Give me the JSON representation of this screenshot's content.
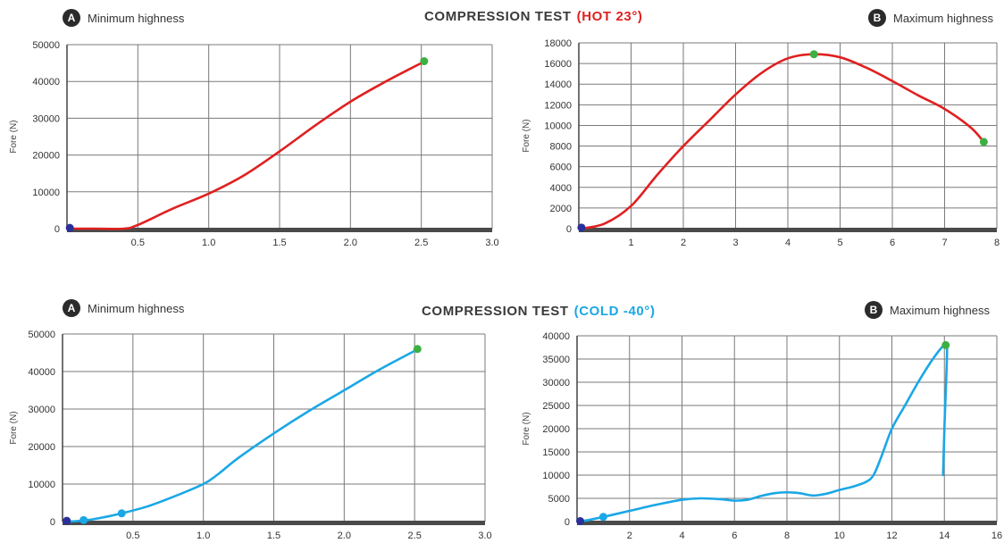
{
  "sections": [
    {
      "title_main": "COMPRESSION TEST",
      "title_temp": "(HOT 23°)",
      "accent": "#e02020",
      "left_badge": "A",
      "left_label": "Minimum highness",
      "right_badge": "B",
      "right_label": "Maximum highness"
    },
    {
      "title_main": "COMPRESSION TEST",
      "title_temp": "(COLD -40°)",
      "accent": "#1aa7e6",
      "left_badge": "A",
      "left_label": "Minimum highness",
      "right_badge": "B",
      "right_label": "Maximum highness"
    }
  ],
  "chart_data": [
    {
      "type": "line",
      "ylabel": "Fore (N)",
      "xlim": [
        0,
        3
      ],
      "ylim": [
        0,
        50000
      ],
      "xticks": [
        0.5,
        1.0,
        1.5,
        2.0,
        2.5,
        3.0
      ],
      "xtick_labels": [
        "0.5",
        "1.0",
        "1.5",
        "2.0",
        "2.5",
        "3.0"
      ],
      "yticks": [
        0,
        10000,
        20000,
        30000,
        40000,
        50000
      ],
      "ytick_labels": [
        "0",
        "10000",
        "20000",
        "30000",
        "40000",
        "50000"
      ],
      "grid": true,
      "line_color": "#e02020",
      "series": [
        {
          "x": [
            0.02,
            0.2,
            0.4,
            0.5,
            0.75,
            1.0,
            1.25,
            1.5,
            1.75,
            2.0,
            2.25,
            2.5
          ],
          "y": [
            0,
            0,
            0,
            1000,
            5500,
            9500,
            14500,
            21000,
            28000,
            34500,
            40000,
            45000
          ]
        }
      ],
      "markers": [
        {
          "x": 0.02,
          "y": 200,
          "color": "#2a2f9a"
        },
        {
          "x": 2.52,
          "y": 45500,
          "color": "#3cb043"
        }
      ]
    },
    {
      "type": "line",
      "ylabel": "Fore (N)",
      "xlim": [
        0,
        8
      ],
      "ylim": [
        0,
        18000
      ],
      "xticks": [
        1,
        2,
        3,
        4,
        5,
        6,
        7,
        8
      ],
      "xtick_labels": [
        "1",
        "2",
        "3",
        "4",
        "5",
        "6",
        "7",
        "8"
      ],
      "yticks": [
        0,
        2000,
        4000,
        6000,
        8000,
        10000,
        12000,
        14000,
        16000,
        18000
      ],
      "ytick_labels": [
        "0",
        "2000",
        "4000",
        "6000",
        "8000",
        "10000",
        "12000",
        "14000",
        "16000",
        "18000"
      ],
      "grid": true,
      "line_color": "#e02020",
      "series": [
        {
          "x": [
            0.05,
            0.5,
            1.0,
            1.5,
            2.0,
            2.5,
            3.0,
            3.5,
            4.0,
            4.5,
            5.0,
            5.5,
            6.0,
            6.5,
            7.0,
            7.5,
            7.75
          ],
          "y": [
            0,
            500,
            2200,
            5200,
            8000,
            10500,
            13000,
            15100,
            16500,
            16900,
            16600,
            15600,
            14300,
            12900,
            11600,
            9800,
            8400
          ]
        }
      ],
      "markers": [
        {
          "x": 0.05,
          "y": 100,
          "color": "#2a2f9a"
        },
        {
          "x": 4.5,
          "y": 16900,
          "color": "#3cb043"
        },
        {
          "x": 7.75,
          "y": 8400,
          "color": "#3cb043"
        }
      ]
    },
    {
      "type": "line",
      "ylabel": "Fore (N)",
      "xlim": [
        0,
        3
      ],
      "ylim": [
        0,
        50000
      ],
      "xticks": [
        0.5,
        1.0,
        1.5,
        2.0,
        2.5,
        3.0
      ],
      "xtick_labels": [
        "0.5",
        "1.0",
        "1.5",
        "2.0",
        "2.5",
        "3.0"
      ],
      "yticks": [
        0,
        10000,
        20000,
        30000,
        40000,
        50000
      ],
      "ytick_labels": [
        "0",
        "10000",
        "20000",
        "30000",
        "40000",
        "50000"
      ],
      "grid": true,
      "line_color": "#1aa7e6",
      "series": [
        {
          "x": [
            0.02,
            0.1,
            0.2,
            0.3,
            0.42,
            0.6,
            0.8,
            1.0,
            1.1,
            1.25,
            1.5,
            1.75,
            2.0,
            2.25,
            2.5
          ],
          "y": [
            0,
            100,
            500,
            1200,
            2200,
            4000,
            6800,
            10000,
            12500,
            17000,
            23500,
            29500,
            35000,
            40500,
            45500
          ]
        }
      ],
      "markers": [
        {
          "x": 0.03,
          "y": 200,
          "color": "#2a2f9a"
        },
        {
          "x": 0.15,
          "y": 400,
          "color": "#1aa7e6"
        },
        {
          "x": 0.42,
          "y": 2200,
          "color": "#1aa7e6"
        },
        {
          "x": 2.52,
          "y": 46000,
          "color": "#3cb043"
        }
      ]
    },
    {
      "type": "line",
      "ylabel": "Fore (N)",
      "xlim": [
        0,
        16
      ],
      "ylim": [
        0,
        40000
      ],
      "xticks": [
        2,
        4,
        6,
        8,
        10,
        12,
        14,
        16
      ],
      "xtick_labels": [
        "2",
        "4",
        "6",
        "8",
        "10",
        "12",
        "14",
        "16"
      ],
      "yticks": [
        0,
        5000,
        10000,
        15000,
        20000,
        25000,
        30000,
        35000,
        40000
      ],
      "ytick_labels": [
        "0",
        "5000",
        "10000",
        "15000",
        "20000",
        "25000",
        "30000",
        "35000",
        "40000"
      ],
      "grid": true,
      "line_color": "#1aa7e6",
      "series": [
        {
          "x": [
            0.1,
            0.5,
            1.0,
            2.0,
            3.0,
            4.0,
            4.7,
            5.5,
            6.0,
            6.5,
            7.0,
            7.5,
            8.0,
            8.5,
            9.0,
            9.5,
            10.0,
            10.5,
            11.0,
            11.3,
            11.6,
            12.0,
            12.5,
            13.0,
            13.5,
            13.9,
            14.05,
            14.1,
            14.0,
            13.95
          ],
          "y": [
            0,
            400,
            1000,
            2300,
            3600,
            4700,
            5000,
            4800,
            4500,
            4700,
            5500,
            6100,
            6300,
            6100,
            5600,
            6000,
            6800,
            7500,
            8500,
            10000,
            14000,
            20000,
            25000,
            30000,
            34500,
            37500,
            38000,
            36000,
            20000,
            10000
          ]
        }
      ],
      "markers": [
        {
          "x": 0.12,
          "y": 100,
          "color": "#2a2f9a"
        },
        {
          "x": 1.0,
          "y": 1000,
          "color": "#1aa7e6"
        },
        {
          "x": 14.05,
          "y": 38000,
          "color": "#3cb043"
        }
      ]
    }
  ]
}
